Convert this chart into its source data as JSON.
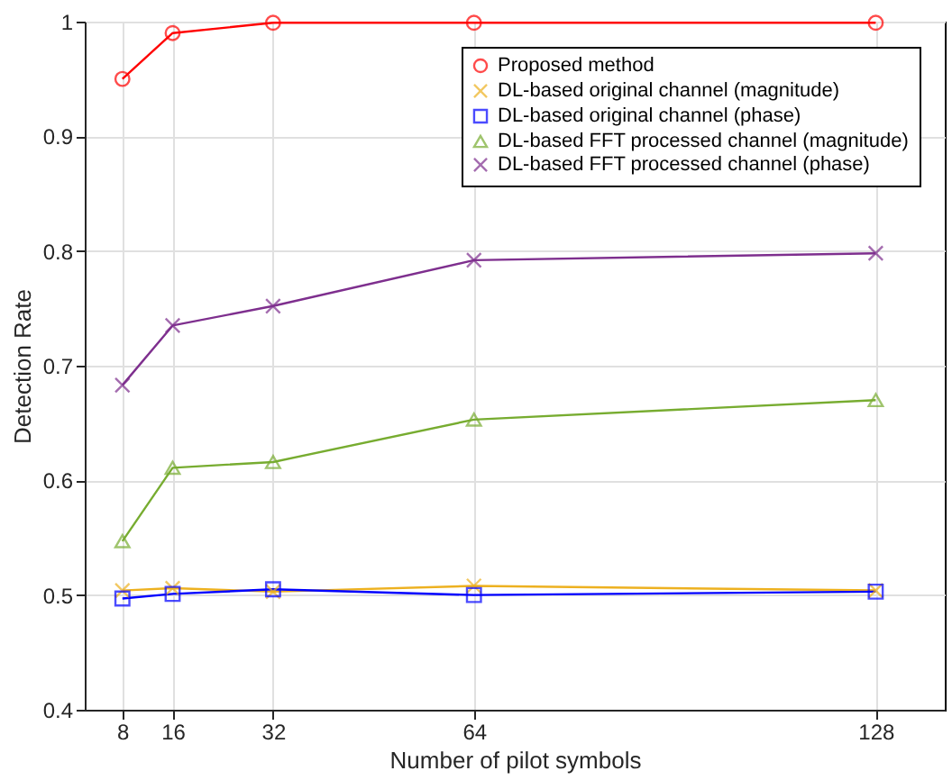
{
  "chart_data": {
    "type": "line",
    "xlabel": "Number of pilot symbols",
    "ylabel": "Detection Rate",
    "x": [
      8,
      16,
      32,
      64,
      128
    ],
    "series": [
      {
        "name": "Proposed method",
        "color": "#ff0000",
        "marker": "circle",
        "values": [
          0.95,
          0.99,
          0.999,
          0.999,
          0.999
        ]
      },
      {
        "name": "DL-based original channel (magnitude)",
        "color": "#edb120",
        "marker": "cross",
        "values": [
          0.504,
          0.506,
          0.503,
          0.508,
          0.504
        ]
      },
      {
        "name": "DL-based original channel (phase)",
        "color": "#0000ff",
        "marker": "square",
        "values": [
          0.497,
          0.501,
          0.505,
          0.5,
          0.503
        ]
      },
      {
        "name": "DL-based FFT processed channel (magnitude)",
        "color": "#77ac30",
        "marker": "triangle",
        "values": [
          0.547,
          0.611,
          0.616,
          0.653,
          0.67
        ]
      },
      {
        "name": "DL-based FFT processed channel (phase)",
        "color": "#7e2f8e",
        "marker": "cross",
        "values": [
          0.683,
          0.735,
          0.752,
          0.792,
          0.798
        ]
      }
    ],
    "xlim": [
      2,
      139
    ],
    "xticks": [
      8,
      16,
      32,
      64,
      128
    ],
    "ylim": [
      0.4,
      1
    ],
    "yticks": [
      0.4,
      0.5,
      0.6,
      0.7,
      0.8,
      0.9,
      1
    ],
    "grid": true,
    "legend": "top right",
    "line_style": "solid"
  }
}
